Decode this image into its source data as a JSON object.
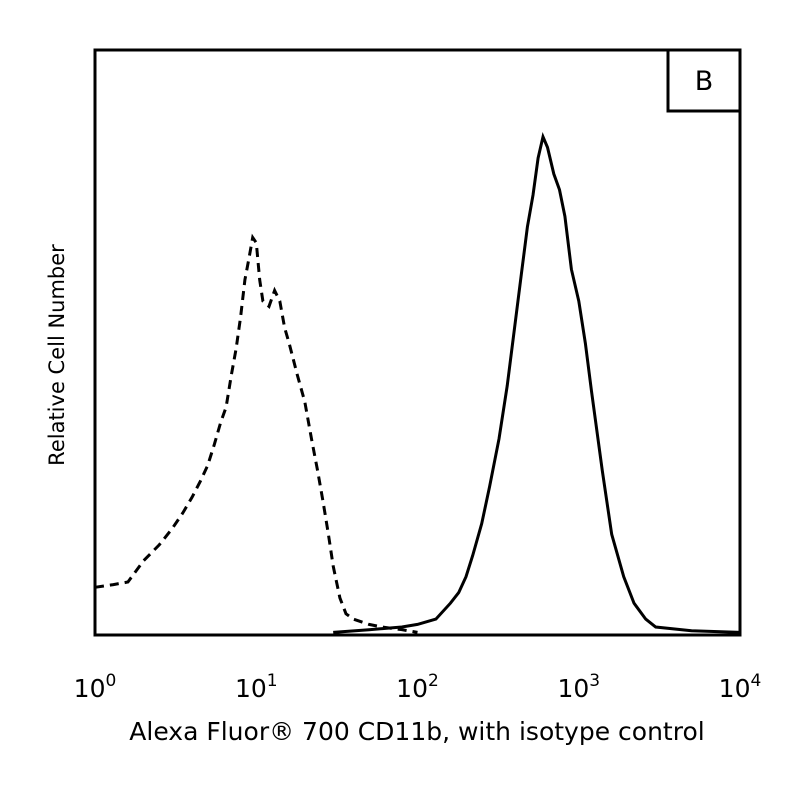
{
  "chart_data": {
    "type": "line",
    "panel_label": "B",
    "xlabel": "Alexa Fluor® 700 CD11b, with isotype control",
    "ylabel": "Relative Cell Number",
    "x_scale": "log",
    "xlim": [
      1,
      10000
    ],
    "ylim": [
      0,
      100
    ],
    "x_ticks": [
      {
        "base": "10",
        "exp": "0",
        "value": 1
      },
      {
        "base": "10",
        "exp": "1",
        "value": 10
      },
      {
        "base": "10",
        "exp": "2",
        "value": 100
      },
      {
        "base": "10",
        "exp": "3",
        "value": 1000
      },
      {
        "base": "10",
        "exp": "4",
        "value": 10000
      }
    ],
    "grid": false,
    "legend": "none",
    "series": [
      {
        "style": "dashed",
        "x": [
          1,
          1.3,
          1.6,
          2,
          2.5,
          3,
          3.5,
          4,
          4.5,
          5,
          5.5,
          6,
          6.5,
          7,
          7.5,
          8,
          8.5,
          9,
          9.5,
          10,
          10.5,
          11,
          12,
          13,
          14,
          15,
          16,
          18,
          20,
          22,
          24,
          26,
          28,
          30,
          33,
          36,
          40,
          50,
          60,
          80,
          100
        ],
        "y": [
          9,
          9.5,
          10,
          14,
          17,
          20,
          23,
          26,
          29,
          32,
          36,
          40,
          43,
          49,
          54,
          60,
          67,
          71,
          75,
          74,
          67,
          63,
          62,
          65,
          63,
          58,
          55,
          49,
          44,
          37,
          31,
          25,
          19,
          13,
          7,
          4,
          3,
          2,
          1.5,
          1,
          0.5
        ]
      },
      {
        "style": "solid",
        "x": [
          30,
          50,
          80,
          100,
          130,
          160,
          180,
          200,
          220,
          250,
          280,
          320,
          360,
          400,
          440,
          480,
          520,
          560,
          600,
          640,
          700,
          760,
          820,
          900,
          1000,
          1100,
          1200,
          1400,
          1600,
          1900,
          2200,
          2600,
          3000,
          5000,
          10000
        ],
        "y": [
          0.5,
          1,
          1.5,
          2,
          3,
          6,
          8,
          11,
          15,
          21,
          28,
          37,
          47,
          58,
          68,
          77,
          83,
          90,
          94,
          92,
          87,
          84,
          79,
          69,
          63,
          55,
          46,
          31,
          19,
          11,
          6,
          3,
          1.5,
          0.8,
          0.5
        ]
      }
    ]
  }
}
